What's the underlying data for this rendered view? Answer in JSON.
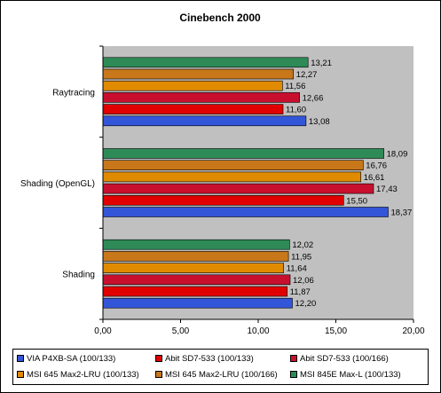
{
  "chart_data": {
    "type": "bar",
    "orientation": "horizontal",
    "title": "Cinebench 2000",
    "xlabel": "",
    "ylabel": "",
    "xlim": [
      0,
      20
    ],
    "x_ticks": [
      "0,00",
      "5,00",
      "10,00",
      "15,00",
      "20,00"
    ],
    "grid": false,
    "legend_position": "bottom",
    "categories": [
      "Raytracing",
      "Shading (OpenGL)",
      "Shading"
    ],
    "series": [
      {
        "name": "VIA P4XB-SA (100/133)",
        "color": "#3355d8",
        "values": [
          13.08,
          18.37,
          12.2
        ],
        "labels": [
          "13,08",
          "18,37",
          "12,20"
        ]
      },
      {
        "name": "Abit SD7-533 (100/133)",
        "color": "#e00000",
        "values": [
          11.6,
          15.5,
          11.87
        ],
        "labels": [
          "11,60",
          "15,50",
          "11,87"
        ]
      },
      {
        "name": "Abit SD7-533 (100/166)",
        "color": "#c8102e",
        "values": [
          12.66,
          17.43,
          12.06
        ],
        "labels": [
          "12,66",
          "17,43",
          "12,06"
        ]
      },
      {
        "name": "MSI 645 Max2-LRU (100/133)",
        "color": "#e08a00",
        "values": [
          11.56,
          16.61,
          11.64
        ],
        "labels": [
          "11,56",
          "16,61",
          "11,64"
        ]
      },
      {
        "name": "MSI 645 Max2-LRU (100/166)",
        "color": "#c8771a",
        "values": [
          12.27,
          16.76,
          11.95
        ],
        "labels": [
          "12,27",
          "16,76",
          "11,95"
        ]
      },
      {
        "name": "MSI 845E Max-L (100/133)",
        "color": "#2e8b57",
        "values": [
          13.21,
          18.09,
          12.02
        ],
        "labels": [
          "13,21",
          "18,09",
          "12,02"
        ]
      }
    ]
  }
}
